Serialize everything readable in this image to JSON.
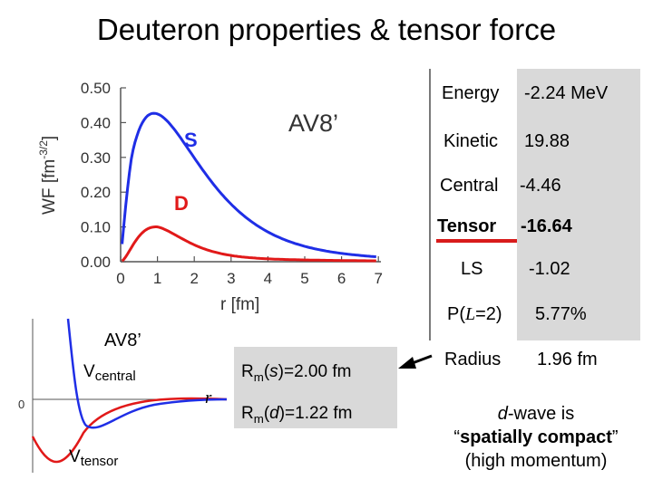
{
  "title": "Deuteron properties & tensor force",
  "wavefunction_plot": {
    "ylabel_base": "WF [fm",
    "ylabel_exp": "-3/2",
    "ylabel_end": "]",
    "xlabel": "r [fm]",
    "model_label": "AV8’",
    "s_label": "S",
    "d_label": "D",
    "y_ticks": [
      "0.50",
      "0.40",
      "0.30",
      "0.20",
      "0.10",
      "0.00"
    ],
    "x_ticks": [
      "0",
      "1",
      "2",
      "3",
      "4",
      "5",
      "6",
      "7"
    ],
    "colors": {
      "s_wave": "#1f2ee6",
      "d_wave": "#e11919",
      "axis": "#555555"
    }
  },
  "potential_plot": {
    "model_label": "AV8’",
    "vcentral_base": "V",
    "vcentral_sub": "central",
    "vtensor_base": "V",
    "vtensor_sub": "tensor",
    "zero_label": "0",
    "r_label": "r"
  },
  "properties": {
    "energy_label": "Energy",
    "energy_value": "-2.24 MeV",
    "kinetic_label": "Kinetic",
    "kinetic_value": "19.88",
    "central_label": "Central",
    "central_value": "-4.46",
    "tensor_label": "Tensor",
    "tensor_value": "-16.64",
    "ls_label": "LS",
    "ls_value": "-1.02",
    "pl_label": "P(",
    "pl_italic": "L",
    "pl_suffix": "=2)",
    "pl_value": "5.77%",
    "radius_label": "Radius",
    "radius_value": "1.96 fm"
  },
  "radii": {
    "s_prefix": "R",
    "s_sub": "m",
    "s_open": "(",
    "s_var": "s",
    "s_close": ")=2.00 fm",
    "d_prefix": "R",
    "d_sub": "m",
    "d_open": "(",
    "d_var": "d",
    "d_close": ")=1.22 fm"
  },
  "note": {
    "line1_italic": "d",
    "line1_rest": "-wave is",
    "line2_open": "“",
    "line2_bold": "spatially compact",
    "line2_close": "”",
    "line3": "(high momentum)"
  }
}
